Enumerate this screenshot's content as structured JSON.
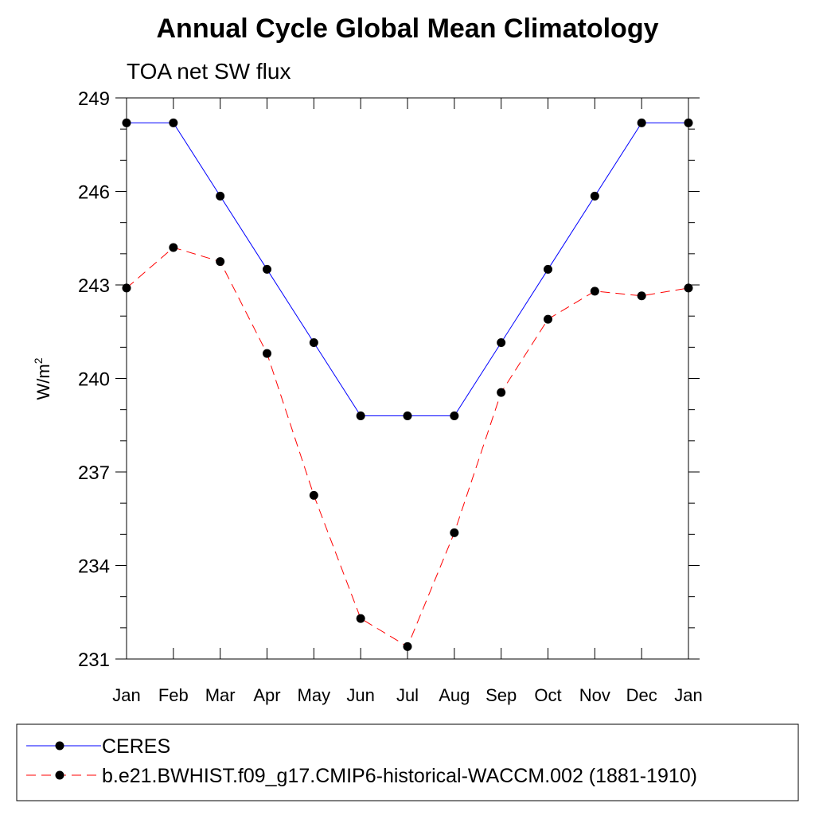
{
  "chart_data": {
    "type": "line",
    "title": "Annual Cycle Global Mean Climatology",
    "subtitle": "TOA net SW flux",
    "xlabel": "",
    "ylabel": "W/m",
    "ylabel_superscript": "2",
    "categories": [
      "Jan",
      "Feb",
      "Mar",
      "Apr",
      "May",
      "Jun",
      "Jul",
      "Aug",
      "Sep",
      "Oct",
      "Nov",
      "Dec",
      "Jan"
    ],
    "ylim": [
      231,
      249
    ],
    "yticks": [
      "249",
      "246",
      "243",
      "240",
      "237",
      "234",
      "231"
    ],
    "grid": false,
    "legend_position": "bottom",
    "series": [
      {
        "name": "CERES",
        "color": "#0000ff",
        "dash": "solid",
        "values": [
          248.2,
          248.2,
          245.85,
          243.5,
          241.15,
          238.8,
          238.8,
          238.8,
          241.15,
          243.5,
          245.85,
          248.2,
          248.2
        ]
      },
      {
        "name": "b.e21.BWHIST.f09_g17.CMIP6-historical-WACCM.002 (1881-1910)",
        "color": "#ff0000",
        "dash": "dashed",
        "values": [
          242.9,
          244.2,
          243.75,
          240.8,
          236.25,
          232.3,
          231.4,
          235.05,
          239.55,
          241.9,
          242.8,
          242.65,
          242.9
        ]
      }
    ]
  }
}
